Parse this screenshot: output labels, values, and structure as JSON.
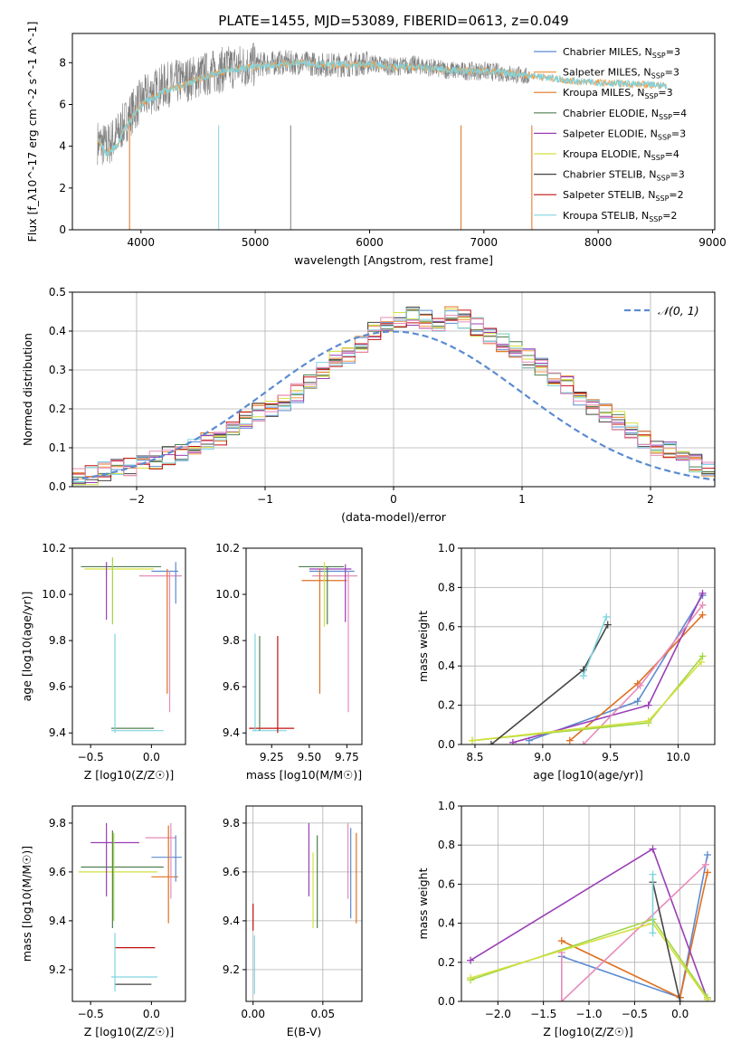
{
  "title": "PLATE=1455, MJD=53089, FIBERID=0613, z=0.049",
  "colors": {
    "Chabrier MILES": "#5b8bd0",
    "Salpeter MILES": "#f39a45",
    "Kroupa MILES": "#e07020",
    "Chabrier ELODIE": "#4f7f4f",
    "Salpeter ELODIE": "#9a3fb5",
    "Kroupa ELODIE": "#d4e040",
    "Chabrier STELIB": "#444444",
    "Salpeter STELIB": "#c01010",
    "Kroupa STELIB": "#80d4e0",
    "pink": "#e68cba",
    "green2": "#9fd640",
    "observed": "#808080"
  },
  "chart_data": [
    {
      "type": "line",
      "xlabel": "wavelength [Angstrom, rest frame]",
      "ylabel": "Flux [f_λ10^-17 erg cm^-2 s^-1 A^-1]",
      "xlim": [
        3400,
        9020
      ],
      "ylim": [
        0,
        9.4
      ],
      "xticks": [
        4000,
        5000,
        6000,
        7000,
        8000,
        9000
      ],
      "yticks": [
        0,
        2,
        4,
        6,
        8
      ],
      "legend": "top-right",
      "legend_entries": [
        "Chabrier MILES, N_SSP=3",
        "Salpeter MILES, N_SSP=3",
        "Kroupa MILES, N_SSP=3",
        "Chabrier ELODIE, N_SSP=4",
        "Salpeter ELODIE, N_SSP=3",
        "Kroupa ELODIE, N_SSP=4",
        "Chabrier STELIB, N_SSP=3",
        "Salpeter STELIB, N_SSP=2",
        "Kroupa STELIB, N_SSP=2"
      ],
      "observed_envelope": {
        "x": [
          3620,
          3700,
          3800,
          3900,
          4000,
          4100,
          4200,
          4400,
          4600,
          4800,
          5000,
          5200,
          5400,
          5600,
          5800,
          6000,
          6200,
          6400,
          6600,
          6800,
          7000,
          7200,
          7400
        ],
        "y": [
          4.2,
          4.0,
          4.6,
          5.5,
          6.2,
          6.6,
          6.9,
          7.2,
          7.5,
          7.8,
          7.9,
          8.0,
          8.0,
          7.9,
          7.9,
          8.0,
          7.8,
          7.9,
          7.7,
          7.6,
          7.6,
          7.5,
          7.3
        ]
      },
      "model_curve": {
        "x": [
          3620,
          3700,
          3800,
          3850,
          3900,
          4000,
          4100,
          4200,
          4400,
          4600,
          4800,
          5000,
          5200,
          5400,
          5600,
          5800,
          6000,
          6200,
          6400,
          6600,
          6800,
          7000,
          7200,
          7400,
          7800,
          8200,
          8600
        ],
        "y": [
          4.4,
          3.6,
          4.1,
          4.8,
          5.2,
          6.0,
          6.3,
          6.6,
          7.0,
          7.4,
          7.7,
          7.8,
          7.9,
          8.0,
          7.9,
          7.9,
          7.9,
          7.8,
          7.8,
          7.7,
          7.6,
          7.6,
          7.5,
          7.4,
          7.1,
          7.0,
          6.9
        ]
      }
    },
    {
      "type": "line",
      "xlabel": "(data-model)/error",
      "ylabel": "Normed distribution",
      "xlim": [
        -2.5,
        2.5
      ],
      "ylim": [
        0,
        0.5
      ],
      "xticks": [
        -2,
        -1,
        0,
        1,
        2
      ],
      "yticks": [
        0.0,
        0.1,
        0.2,
        0.3,
        0.4,
        0.5
      ],
      "legend": "top-right",
      "legend_entries": [
        "𝒩(0, 1)"
      ],
      "bin_width": 0.1,
      "bin_start": -2.5,
      "histogram": [
        0.03,
        0.03,
        0.04,
        0.05,
        0.05,
        0.06,
        0.07,
        0.08,
        0.09,
        0.1,
        0.12,
        0.13,
        0.15,
        0.17,
        0.19,
        0.2,
        0.22,
        0.24,
        0.27,
        0.3,
        0.33,
        0.34,
        0.37,
        0.4,
        0.42,
        0.43,
        0.44,
        0.43,
        0.42,
        0.44,
        0.43,
        0.41,
        0.39,
        0.37,
        0.35,
        0.33,
        0.31,
        0.28,
        0.26,
        0.23,
        0.21,
        0.19,
        0.17,
        0.15,
        0.12,
        0.1,
        0.09,
        0.07,
        0.06,
        0.04
      ]
    },
    {
      "type": "scatter",
      "xlabel": "Z [log10(Z/Z☉)]",
      "ylabel": "age  [log10(age/yr)]",
      "xlim": [
        -0.65,
        0.28
      ],
      "ylim": [
        9.35,
        10.2
      ],
      "xticks": [
        -0.5,
        0.0
      ],
      "yticks": [
        9.4,
        9.6,
        9.8,
        10.0,
        10.2
      ],
      "hlines": [
        {
          "y": 10.12,
          "x0": -0.58,
          "x1": 0.08,
          "color": "#4f7f4f"
        },
        {
          "y": 10.11,
          "x0": -0.55,
          "x1": 0.02,
          "color": "#d4e040"
        },
        {
          "y": 10.1,
          "x0": 0.0,
          "x1": 0.22,
          "color": "#5b8bd0"
        },
        {
          "y": 10.08,
          "x0": -0.1,
          "x1": 0.25,
          "color": "#e68cba"
        },
        {
          "y": 9.42,
          "x0": -0.33,
          "x1": 0.02,
          "color": "#4f7f4f"
        },
        {
          "y": 9.41,
          "x0": -0.33,
          "x1": 0.1,
          "color": "#80d4e0"
        }
      ],
      "vlines": [
        {
          "x": -0.37,
          "y0": 9.89,
          "y1": 10.14,
          "color": "#9a3fb5"
        },
        {
          "x": -0.32,
          "y0": 9.87,
          "y1": 10.16,
          "color": "#9fd640"
        },
        {
          "x": -0.3,
          "y0": 9.4,
          "y1": 9.83,
          "color": "#80d4e0"
        },
        {
          "x": 0.13,
          "y0": 9.57,
          "y1": 10.11,
          "color": "#e07020"
        },
        {
          "x": 0.15,
          "y0": 9.49,
          "y1": 10.1,
          "color": "#e68cba"
        },
        {
          "x": 0.2,
          "y0": 9.96,
          "y1": 10.14,
          "color": "#5b8bd0"
        }
      ]
    },
    {
      "type": "scatter",
      "xlabel": "mass [log10(M/M☉)]",
      "ylabel": "",
      "xlim": [
        9.08,
        9.85
      ],
      "ylim": [
        9.35,
        10.2
      ],
      "xticks": [
        9.25,
        9.5,
        9.75
      ],
      "yticks": [
        9.4,
        9.6,
        9.8,
        10.0,
        10.2
      ],
      "hlines": [
        {
          "y": 10.12,
          "x0": 9.43,
          "x1": 9.73,
          "color": "#4f7f4f"
        },
        {
          "y": 10.11,
          "x0": 9.5,
          "x1": 9.78,
          "color": "#9a3fb5"
        },
        {
          "y": 10.1,
          "x0": 9.5,
          "x1": 9.8,
          "color": "#5b8bd0"
        },
        {
          "y": 10.08,
          "x0": 9.52,
          "x1": 9.82,
          "color": "#e68cba"
        },
        {
          "y": 10.06,
          "x0": 9.45,
          "x1": 9.75,
          "color": "#e07020"
        },
        {
          "y": 9.42,
          "x0": 9.1,
          "x1": 9.4,
          "color": "#c01010"
        },
        {
          "y": 9.41,
          "x0": 9.12,
          "x1": 9.35,
          "color": "#80d4e0"
        }
      ],
      "vlines": [
        {
          "x": 9.14,
          "y0": 9.41,
          "y1": 9.83,
          "color": "#80d4e0"
        },
        {
          "x": 9.17,
          "y0": 9.41,
          "y1": 9.82,
          "color": "#4f7f4f"
        },
        {
          "x": 9.29,
          "y0": 9.4,
          "y1": 9.82,
          "color": "#c01010"
        },
        {
          "x": 9.57,
          "y0": 9.57,
          "y1": 10.11,
          "color": "#e07020"
        },
        {
          "x": 9.6,
          "y0": 9.86,
          "y1": 10.14,
          "color": "#d4e040"
        },
        {
          "x": 9.62,
          "y0": 9.87,
          "y1": 10.12,
          "color": "#4f7f4f"
        },
        {
          "x": 9.74,
          "y0": 9.88,
          "y1": 10.13,
          "color": "#9a3fb5"
        },
        {
          "x": 9.76,
          "y0": 9.49,
          "y1": 10.1,
          "color": "#e68cba"
        }
      ]
    },
    {
      "type": "line",
      "xlabel": "age  [log10(age/yr)]",
      "ylabel": "mass weight",
      "xlim": [
        8.4,
        10.27
      ],
      "ylim": [
        0,
        1
      ],
      "xticks": [
        8.5,
        9.0,
        9.5,
        10.0
      ],
      "yticks": [
        0.0,
        0.2,
        0.4,
        0.6,
        0.8,
        1.0
      ],
      "series": [
        {
          "color": "#5b8bd0",
          "x": [
            8.9,
            9.7,
            10.18
          ],
          "y": [
            0.02,
            0.22,
            0.76
          ]
        },
        {
          "color": "#e07020",
          "x": [
            9.2,
            9.7,
            10.18
          ],
          "y": [
            0.02,
            0.31,
            0.66
          ]
        },
        {
          "color": "#9a3fb5",
          "x": [
            8.78,
            9.78,
            10.18
          ],
          "y": [
            0.01,
            0.2,
            0.77
          ]
        },
        {
          "color": "#e68cba",
          "x": [
            9.3,
            9.72,
            10.18
          ],
          "y": [
            0.0,
            0.3,
            0.71
          ]
        },
        {
          "color": "#9fd640",
          "x": [
            8.48,
            9.78,
            10.18
          ],
          "y": [
            0.02,
            0.11,
            0.45
          ]
        },
        {
          "color": "#d4e040",
          "x": [
            8.48,
            9.78,
            10.17
          ],
          "y": [
            0.02,
            0.12,
            0.42
          ]
        },
        {
          "color": "#444444",
          "x": [
            8.62,
            9.3,
            9.48
          ],
          "y": [
            0.0,
            0.38,
            0.61
          ]
        },
        {
          "color": "#80d4e0",
          "x": [
            9.3,
            9.47
          ],
          "y": [
            0.35,
            0.65
          ]
        }
      ]
    },
    {
      "type": "scatter",
      "xlabel": "Z [log10(Z/Z☉)]",
      "ylabel": "mass [log10(M/M☉)]",
      "xlim": [
        -0.65,
        0.28
      ],
      "ylim": [
        9.07,
        9.87
      ],
      "xticks": [
        -0.5,
        0.0
      ],
      "yticks": [
        9.2,
        9.4,
        9.6,
        9.8
      ],
      "hlines": [
        {
          "y": 9.74,
          "x0": -0.05,
          "x1": 0.2,
          "color": "#e68cba"
        },
        {
          "y": 9.72,
          "x0": -0.5,
          "x1": -0.1,
          "color": "#9a3fb5"
        },
        {
          "y": 9.66,
          "x0": 0.0,
          "x1": 0.25,
          "color": "#5b8bd0"
        },
        {
          "y": 9.62,
          "x0": -0.58,
          "x1": 0.1,
          "color": "#4f7f4f"
        },
        {
          "y": 9.6,
          "x0": -0.6,
          "x1": 0.05,
          "color": "#d4e040"
        },
        {
          "y": 9.58,
          "x0": 0.0,
          "x1": 0.22,
          "color": "#e07020"
        },
        {
          "y": 9.29,
          "x0": -0.3,
          "x1": 0.03,
          "color": "#c01010"
        },
        {
          "y": 9.17,
          "x0": -0.33,
          "x1": 0.05,
          "color": "#80d4e0"
        },
        {
          "y": 9.14,
          "x0": -0.3,
          "x1": 0.0,
          "color": "#444444"
        }
      ],
      "vlines": [
        {
          "x": -0.37,
          "y0": 9.5,
          "y1": 9.8,
          "color": "#9a3fb5"
        },
        {
          "x": -0.32,
          "y0": 9.37,
          "y1": 9.77,
          "color": "#4f7f4f"
        },
        {
          "x": -0.31,
          "y0": 9.4,
          "y1": 9.76,
          "color": "#9fd640"
        },
        {
          "x": -0.3,
          "y0": 9.11,
          "y1": 9.35,
          "color": "#80d4e0"
        },
        {
          "x": 0.14,
          "y0": 9.39,
          "y1": 9.79,
          "color": "#e07020"
        },
        {
          "x": 0.16,
          "y0": 9.49,
          "y1": 9.8,
          "color": "#e68cba"
        },
        {
          "x": 0.2,
          "y0": 9.56,
          "y1": 9.75,
          "color": "#5b8bd0"
        }
      ]
    },
    {
      "type": "scatter",
      "xlabel": "E(B-V)",
      "ylabel": "",
      "xlim": [
        -0.005,
        0.078
      ],
      "ylim": [
        9.07,
        9.87
      ],
      "xticks": [
        0.0,
        0.05
      ],
      "xtick_labels": [
        "0.00",
        "0.05"
      ],
      "yticks": [
        9.2,
        9.4,
        9.6,
        9.8
      ],
      "vlines": [
        {
          "x": 0.0,
          "y0": 9.36,
          "y1": 9.47,
          "color": "#c01010"
        },
        {
          "x": 0.001,
          "y0": 9.1,
          "y1": 9.34,
          "color": "#80d4e0"
        },
        {
          "x": 0.04,
          "y0": 9.5,
          "y1": 9.8,
          "color": "#9a3fb5"
        },
        {
          "x": 0.043,
          "y0": 9.37,
          "y1": 9.68,
          "color": "#d4e040"
        },
        {
          "x": 0.046,
          "y0": 9.37,
          "y1": 9.75,
          "color": "#4f7f4f"
        },
        {
          "x": 0.068,
          "y0": 9.49,
          "y1": 9.8,
          "color": "#e68cba"
        },
        {
          "x": 0.07,
          "y0": 9.41,
          "y1": 9.78,
          "color": "#5b8bd0"
        },
        {
          "x": 0.074,
          "y0": 9.39,
          "y1": 9.76,
          "color": "#e07020"
        }
      ]
    },
    {
      "type": "line",
      "xlabel": "Z [log10(Z/Z☉)]",
      "ylabel": "mass weight",
      "xlim": [
        -2.4,
        0.38
      ],
      "ylim": [
        0,
        1
      ],
      "xticks": [
        -2.0,
        -1.5,
        -1.0,
        -0.5,
        0.0
      ],
      "yticks": [
        0.0,
        0.2,
        0.4,
        0.6,
        0.8,
        1.0
      ],
      "series": [
        {
          "color": "#5b8bd0",
          "x": [
            -1.3,
            0.0,
            0.3
          ],
          "y": [
            0.23,
            0.02,
            0.75
          ]
        },
        {
          "color": "#e07020",
          "x": [
            -1.3,
            0.0,
            0.3
          ],
          "y": [
            0.31,
            0.02,
            0.66
          ]
        },
        {
          "color": "#9a3fb5",
          "x": [
            -2.3,
            -0.3,
            0.3
          ],
          "y": [
            0.21,
            0.78,
            0.01
          ]
        },
        {
          "color": "#e68cba",
          "x": [
            -1.3,
            -1.3,
            0.28
          ],
          "y": [
            0.25,
            0.0,
            0.7
          ]
        },
        {
          "color": "#9fd640",
          "x": [
            -2.3,
            -0.3,
            0.3
          ],
          "y": [
            0.11,
            0.42,
            0.02
          ]
        },
        {
          "color": "#d4e040",
          "x": [
            -2.3,
            -0.3,
            0.3
          ],
          "y": [
            0.12,
            0.4,
            0.01
          ]
        },
        {
          "color": "#444444",
          "x": [
            -0.3,
            0.0
          ],
          "y": [
            0.61,
            0.0
          ]
        },
        {
          "color": "#80d4e0",
          "x": [
            -0.3,
            -0.3
          ],
          "y": [
            0.35,
            0.65
          ]
        }
      ]
    }
  ]
}
